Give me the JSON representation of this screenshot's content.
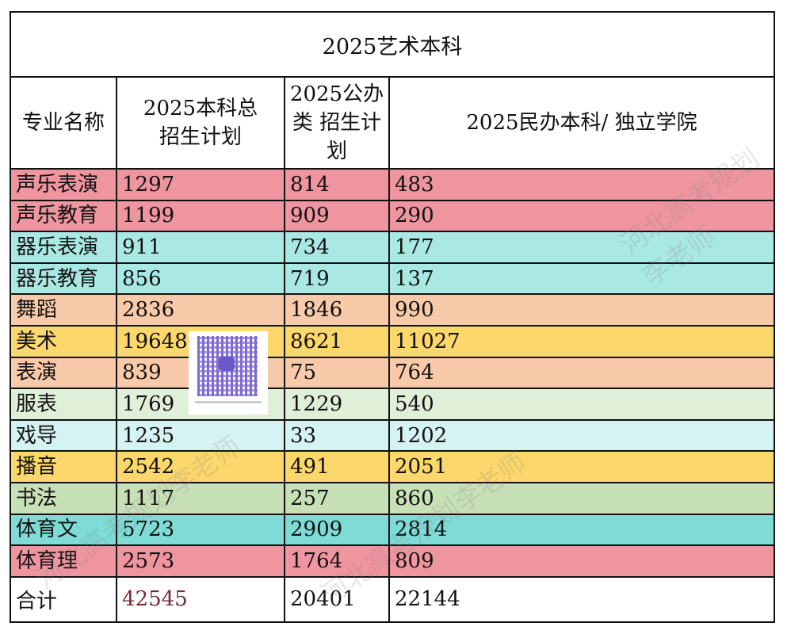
{
  "title": "2025艺术本科",
  "headers": [
    "专业名称",
    "2025本科总招生计划",
    "2025公办类 招生计划",
    "2025民办本科/ 独立学院"
  ],
  "rows": [
    {
      "name": "声乐表演",
      "total": "1297",
      "public": "814",
      "private": "483",
      "color": "#ef959f"
    },
    {
      "name": "声乐教育",
      "total": "1199",
      "public": "909",
      "private": "290",
      "color": "#ef959f"
    },
    {
      "name": "器乐表演",
      "total": "911",
      "public": "734",
      "private": "177",
      "color": "#a9e8e3"
    },
    {
      "name": "器乐教育",
      "total": "856",
      "public": "719",
      "private": "137",
      "color": "#a9e8e3"
    },
    {
      "name": "舞蹈",
      "total": "2836",
      "public": "1846",
      "private": "990",
      "color": "#f8caa9"
    },
    {
      "name": "美术",
      "total": "19648",
      "public": "8621",
      "private": "11027",
      "color": "#fcd76c"
    },
    {
      "name": "表演",
      "total": "839",
      "public": "75",
      "private": "764",
      "color": "#f8caa9"
    },
    {
      "name": "服表",
      "total": "1769",
      "public": "1229",
      "private": "540",
      "color": "#e0efd8"
    },
    {
      "name": "戏导",
      "total": "1235",
      "public": "33",
      "private": "1202",
      "color": "#d5f3f2"
    },
    {
      "name": "播音",
      "total": "2542",
      "public": "491",
      "private": "2051",
      "color": "#fcd76c"
    },
    {
      "name": "书法",
      "total": "1117",
      "public": "257",
      "private": "860",
      "color": "#c7e0b6"
    },
    {
      "name": "体育文",
      "total": "5723",
      "public": "2909",
      "private": "2814",
      "color": "#7edbd5"
    },
    {
      "name": "体育理",
      "total": "2573",
      "public": "1764",
      "private": "809",
      "color": "#ef959f"
    }
  ],
  "total": {
    "name": "合计",
    "total": "42545",
    "public": "20401",
    "private": "22144"
  },
  "watermark": "河北高考规划李老师"
}
